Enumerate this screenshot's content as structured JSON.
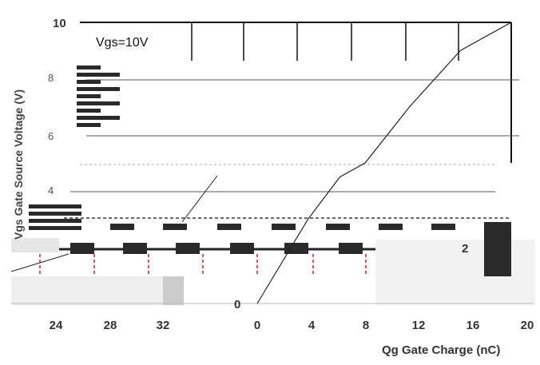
{
  "chart_data": {
    "type": "line",
    "annotation": "Vgs=10V",
    "xlabel": "Qg Gate Charge (nC)",
    "ylabel": "Vgs Gate Source Voltage (V)",
    "xticks_visible": [
      "24",
      "28",
      "32",
      "0",
      "4",
      "8",
      "12",
      "16",
      "20"
    ],
    "yticks_visible": [
      "10",
      "8",
      "6",
      "4",
      "2",
      "0"
    ],
    "xlim": [
      0,
      20
    ],
    "ylim": [
      0,
      10
    ],
    "grid": true,
    "series": [
      {
        "x": [
          0,
          4,
          6.5,
          8.5,
          12,
          16,
          20
        ],
        "y": [
          0,
          3,
          4.5,
          5,
          7,
          9,
          10
        ]
      }
    ]
  },
  "colors": {
    "line": "#222222",
    "grid": "#555555",
    "dark_block": "#2a2a2a",
    "light_block": "#e6e6e6",
    "red_dash": "#cc2222"
  }
}
